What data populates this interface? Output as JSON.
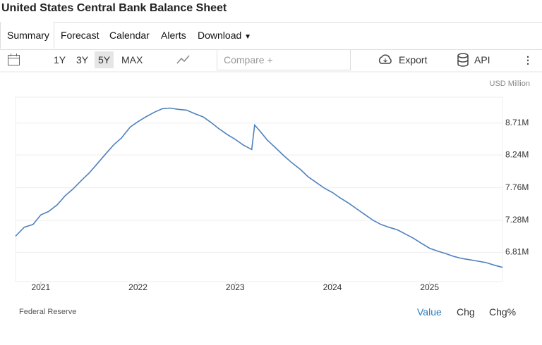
{
  "header": {
    "title": "United States Central Bank Balance Sheet"
  },
  "tabs": [
    "Summary",
    "Forecast",
    "Calendar",
    "Alerts",
    "Download"
  ],
  "toolbar": {
    "ranges": [
      "1Y",
      "3Y",
      "5Y",
      "MAX"
    ],
    "compare": "Compare +",
    "export": "Export",
    "api": "API"
  },
  "chart_data": {
    "type": "line",
    "unit": "USD Million",
    "source": "Federal Reserve",
    "color": "#4f81bd",
    "grid": true,
    "x": [
      2020.74,
      2020.83,
      2020.92,
      2021.0,
      2021.08,
      2021.17,
      2021.25,
      2021.33,
      2021.42,
      2021.5,
      2021.58,
      2021.67,
      2021.75,
      2021.83,
      2021.92,
      2022.0,
      2022.08,
      2022.17,
      2022.25,
      2022.33,
      2022.42,
      2022.5,
      2022.58,
      2022.67,
      2022.75,
      2022.83,
      2022.92,
      2023.0,
      2023.08,
      2023.17,
      2023.2,
      2023.25,
      2023.33,
      2023.42,
      2023.5,
      2023.58,
      2023.67,
      2023.75,
      2023.83,
      2023.92,
      2024.0,
      2024.08,
      2024.17,
      2024.25,
      2024.33,
      2024.42,
      2024.5,
      2024.58,
      2024.67,
      2024.75,
      2024.83,
      2024.92,
      2025.0,
      2025.08,
      2025.17,
      2025.25,
      2025.33,
      2025.42,
      2025.5,
      2025.58,
      2025.67,
      2025.75
    ],
    "values": [
      7047000,
      7180000,
      7220000,
      7360000,
      7410000,
      7510000,
      7640000,
      7740000,
      7870000,
      7980000,
      8110000,
      8260000,
      8390000,
      8490000,
      8650000,
      8730000,
      8800000,
      8870000,
      8920000,
      8930000,
      8910000,
      8900000,
      8850000,
      8800000,
      8720000,
      8630000,
      8540000,
      8470000,
      8390000,
      8320000,
      8680000,
      8600000,
      8460000,
      8340000,
      8230000,
      8130000,
      8030000,
      7920000,
      7840000,
      7750000,
      7690000,
      7610000,
      7530000,
      7450000,
      7370000,
      7280000,
      7220000,
      7180000,
      7140000,
      7080000,
      7020000,
      6940000,
      6870000,
      6830000,
      6790000,
      6750000,
      6720000,
      6700000,
      6680000,
      6660000,
      6620000,
      6590000
    ],
    "xlim": [
      2020.74,
      2025.75
    ],
    "xticks": [
      2021,
      2022,
      2023,
      2024,
      2025
    ],
    "ylim": [
      6380000,
      9090000
    ],
    "yticks": [
      {
        "value": 6810000,
        "label": "6.81M"
      },
      {
        "value": 7280000,
        "label": "7.28M"
      },
      {
        "value": 7760000,
        "label": "7.76M"
      },
      {
        "value": 8240000,
        "label": "8.24M"
      },
      {
        "value": 8710000,
        "label": "8.71M"
      }
    ]
  },
  "footer_tabs": [
    "Value",
    "Chg",
    "Chg%"
  ]
}
